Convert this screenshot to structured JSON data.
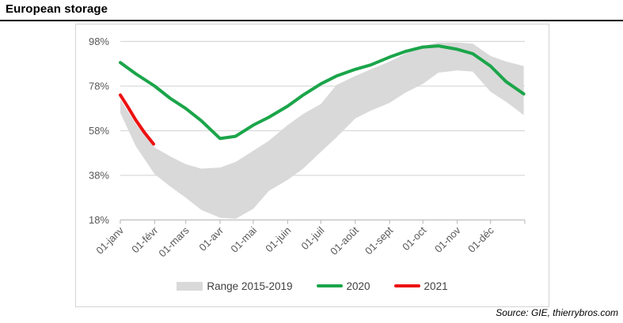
{
  "header": {
    "title": "European storage"
  },
  "chart_data": {
    "type": "area+line",
    "title": "European storage",
    "source": "Source: GIE, thierrybros.com",
    "colors": {
      "band": "#d9d9d9",
      "line_2020": "#1ba54a",
      "line_2021": "#ed1111",
      "gridline": "#d9d9d9",
      "axis": "#bfbfbf",
      "axis_label": "#595959"
    },
    "y_axis": {
      "tick_labels": [
        "18%",
        "38%",
        "58%",
        "78%",
        "98%"
      ],
      "tick_values": [
        18,
        38,
        58,
        78,
        98
      ],
      "range": [
        18,
        103
      ],
      "unit": "%"
    },
    "x_axis": {
      "labels": [
        "01-janv",
        "01-févr",
        "01-mars",
        "01-avr",
        "01-mai",
        "01-juin",
        "01-juil",
        "01-août",
        "01-sept",
        "01-oct",
        "01-nov",
        "01-déc"
      ],
      "label_days": [
        0,
        31,
        59,
        90,
        120,
        151,
        181,
        212,
        243,
        273,
        304,
        334
      ],
      "tick_days": [
        0,
        31,
        59,
        90,
        120,
        151,
        181,
        212,
        243,
        273,
        304,
        334,
        365
      ],
      "days_in_year": 365
    },
    "series": [
      {
        "name": "Range 2015-2019",
        "type": "band",
        "color": "#d9d9d9",
        "x_days": [
          0,
          14,
          31,
          45,
          59,
          73,
          90,
          104,
          120,
          134,
          151,
          165,
          181,
          195,
          212,
          226,
          243,
          257,
          273,
          287,
          304,
          318,
          334,
          348,
          364
        ],
        "upper": [
          72,
          61,
          50.5,
          46.5,
          43,
          41,
          41.5,
          44,
          49,
          53.5,
          60.5,
          65.5,
          70,
          78.5,
          82.5,
          85.5,
          89,
          92.5,
          96,
          97.5,
          97.5,
          97,
          91.5,
          89,
          87
        ],
        "lower": [
          66,
          51,
          38.5,
          33,
          28,
          22.5,
          19,
          18.5,
          23,
          31,
          36,
          41,
          48.5,
          55,
          63.5,
          67,
          70.5,
          75,
          79,
          84,
          85,
          84.5,
          75.5,
          71,
          65
        ]
      },
      {
        "name": "2020",
        "type": "line",
        "color": "#1ba54a",
        "x_days": [
          0,
          14,
          31,
          45,
          59,
          73,
          90,
          104,
          120,
          134,
          151,
          165,
          181,
          195,
          212,
          226,
          243,
          257,
          273,
          287,
          304,
          318,
          334,
          348,
          364
        ],
        "values": [
          88.5,
          83.5,
          78,
          72.5,
          68,
          62.5,
          54.5,
          55.5,
          60.5,
          64,
          69,
          74,
          79,
          82.5,
          85.5,
          87.5,
          91,
          93.5,
          95.5,
          96,
          94.5,
          92.5,
          87,
          80,
          74.5
        ]
      },
      {
        "name": "2021",
        "type": "line",
        "color": "#ed1111",
        "x_days": [
          0,
          7,
          14,
          22,
          30
        ],
        "values": [
          74,
          68.5,
          62.7,
          57,
          52
        ]
      }
    ]
  }
}
